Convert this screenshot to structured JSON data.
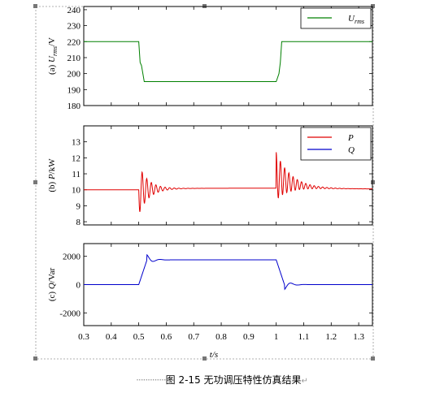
{
  "caption": "图 2-15 无功调压特性仿真结果",
  "xlabel": "t/s",
  "chart_data": [
    {
      "id": "a",
      "type": "line",
      "ylabel_prefix": "(a) ",
      "ylabel_var": "U",
      "ylabel_sub": "rms",
      "ylabel_unit": "/V",
      "ylim": [
        180,
        242
      ],
      "yticks": [
        180,
        190,
        200,
        210,
        220,
        230,
        240
      ],
      "xlim": [
        0.3,
        1.35
      ],
      "series": [
        {
          "legend_var": "U",
          "legend_sub": "rms",
          "color": "#008000",
          "x": [
            0.3,
            0.5,
            0.505,
            0.51,
            0.52,
            1.0,
            1.01,
            1.015,
            1.02,
            1.35
          ],
          "y": [
            220,
            220,
            207,
            205,
            195,
            195,
            200,
            207,
            220,
            220
          ]
        }
      ]
    },
    {
      "id": "b",
      "type": "line",
      "ylabel_prefix": "(b) ",
      "ylabel_var": "P",
      "ylabel_sub": "",
      "ylabel_unit": "/kW",
      "ylim": [
        7.8,
        14
      ],
      "yticks": [
        8,
        9,
        10,
        11,
        12,
        13
      ],
      "xlim": [
        0.3,
        1.35
      ],
      "series": [
        {
          "legend_var": "P",
          "legend_sub": "",
          "color": "#e00000"
        },
        {
          "legend_var": "Q",
          "legend_sub": "",
          "color": "#0000cc"
        }
      ]
    },
    {
      "id": "c",
      "type": "line",
      "ylabel_prefix": "(c) ",
      "ylabel_var": "Q",
      "ylabel_sub": "",
      "ylabel_unit": "/Var",
      "ylim": [
        -2900,
        2900
      ],
      "yticks": [
        -2000,
        0,
        2000
      ],
      "xlim": [
        0.3,
        1.35
      ],
      "xticks": [
        0.3,
        0.4,
        0.5,
        0.6,
        0.7,
        0.8,
        0.9,
        1.0,
        1.1,
        1.2,
        1.3
      ],
      "xticklabels": [
        "0.3",
        "0.4",
        "0.5",
        "0.6",
        "0.7",
        "0.8",
        "0.9",
        "1",
        "1.1",
        "1.2",
        "1.3"
      ],
      "series": [
        {
          "color": "#0000cc"
        }
      ]
    }
  ]
}
